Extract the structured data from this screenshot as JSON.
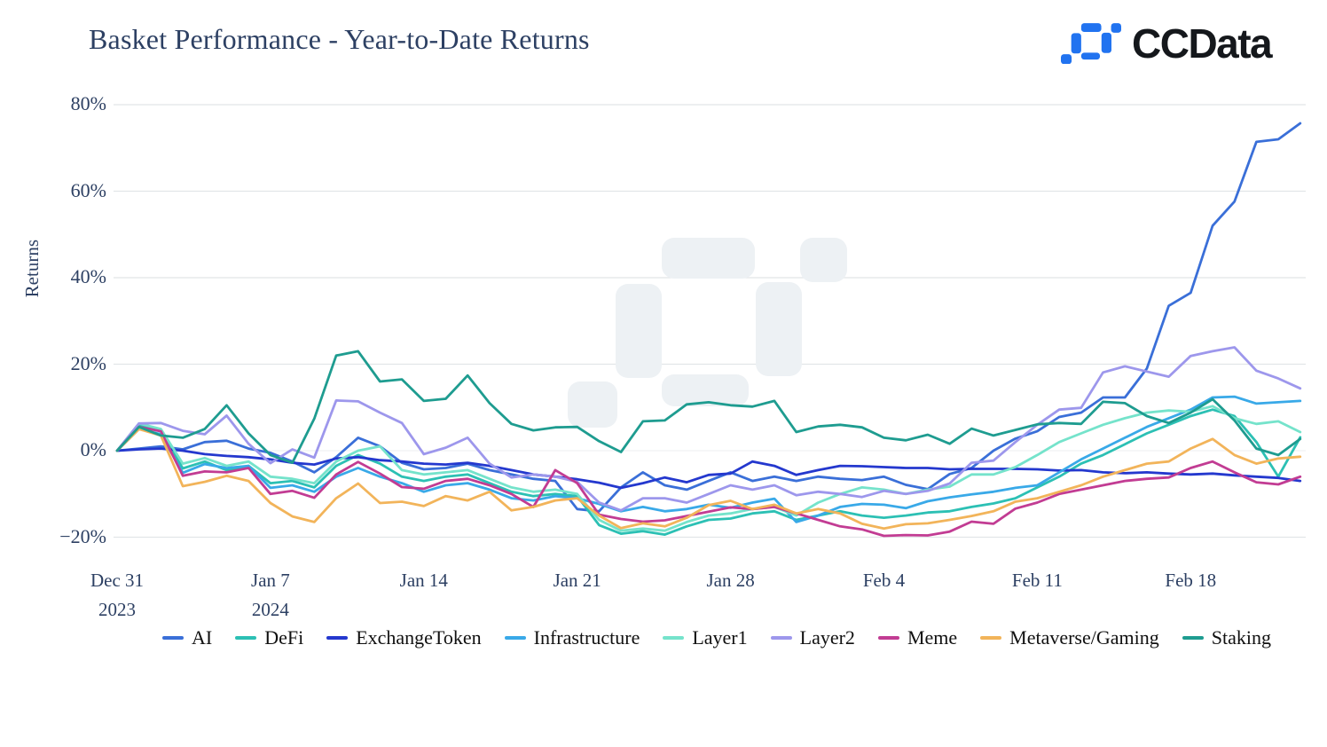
{
  "header": {
    "title": "Basket Performance -  Year-to-Date Returns",
    "logo_text": "CCData"
  },
  "chart_data": {
    "type": "line",
    "title": "Basket Performance -  Year-to-Date Returns",
    "xlabel": "",
    "ylabel": "Returns",
    "ylim": [
      -25,
      85
    ],
    "grid": "horizontal-only",
    "legend_position": "bottom-left",
    "watermark": "ccdata-logo-mark",
    "y_ticks": [
      {
        "label": "80%",
        "value": 80
      },
      {
        "label": "60%",
        "value": 60
      },
      {
        "label": "40%",
        "value": 40
      },
      {
        "label": "20%",
        "value": 20
      },
      {
        "label": "0%",
        "value": 0
      },
      {
        "label": "−20%",
        "value": -20
      }
    ],
    "x_range_days": 54,
    "x_ticks": [
      {
        "label": "Dec 31",
        "sublabel": "2023",
        "day": 0
      },
      {
        "label": "Jan 7",
        "sublabel": "2024",
        "day": 7
      },
      {
        "label": "Jan 14",
        "sublabel": "",
        "day": 14
      },
      {
        "label": "Jan 21",
        "sublabel": "",
        "day": 21
      },
      {
        "label": "Jan 28",
        "sublabel": "",
        "day": 28
      },
      {
        "label": "Feb 4",
        "sublabel": "",
        "day": 35
      },
      {
        "label": "Feb 11",
        "sublabel": "",
        "day": 42
      },
      {
        "label": "Feb 18",
        "sublabel": "",
        "day": 49
      }
    ],
    "series": [
      {
        "name": "AI",
        "color": "#3A6FD8",
        "values": [
          0,
          0.5,
          1,
          0.3,
          2,
          2.3,
          0.5,
          -0.5,
          -2.5,
          -5,
          -1.5,
          3,
          1,
          -2.8,
          -4.3,
          -4,
          -3,
          -4.5,
          -5.5,
          -6.5,
          -7,
          -13.5,
          -14,
          -8.5,
          -5,
          -8,
          -9,
          -7,
          -5,
          -7,
          -6,
          -7,
          -6,
          -6.5,
          -6.8,
          -6,
          -7.9,
          -8.9,
          -5.4,
          -4,
          0,
          2.8,
          4.5,
          7.8,
          8.8,
          12.3,
          12.3,
          19,
          33.5,
          36.5,
          52,
          57.6,
          71.4,
          72,
          75.7
        ]
      },
      {
        "name": "DeFi",
        "color": "#2CC0B4",
        "values": [
          0,
          6,
          4.5,
          -4.1,
          -2.5,
          -4.5,
          -3.5,
          -7.5,
          -7,
          -8.5,
          -3.5,
          -1,
          -3,
          -6,
          -7,
          -6,
          -5.5,
          -7.5,
          -9.5,
          -10.5,
          -10,
          -10.5,
          -17.2,
          -19.2,
          -18.6,
          -19.4,
          -17.5,
          -16,
          -15.7,
          -14.5,
          -14,
          -16,
          -15,
          -14,
          -15,
          -15.5,
          -15,
          -14.3,
          -14,
          -13,
          -12.2,
          -11,
          -8.5,
          -6,
          -3,
          -1,
          1.5,
          4,
          6,
          8,
          9.5,
          8,
          2,
          -6,
          3.1
        ]
      },
      {
        "name": "ExchangeToken",
        "color": "#2438CE",
        "values": [
          0,
          0.3,
          0.5,
          0,
          -0.8,
          -1.2,
          -1.5,
          -2,
          -2.8,
          -3.2,
          -1.8,
          -1.5,
          -2.2,
          -2.5,
          -3,
          -3.2,
          -2.8,
          -3.5,
          -4.5,
          -5.5,
          -6,
          -6.6,
          -7.4,
          -8.6,
          -7.5,
          -6.2,
          -7.3,
          -5.6,
          -5.3,
          -2.5,
          -3.5,
          -5.6,
          -4.5,
          -3.5,
          -3.6,
          -3.8,
          -4,
          -4,
          -4.3,
          -4.2,
          -4.2,
          -4.2,
          -4.3,
          -4.6,
          -4.5,
          -5,
          -5.2,
          -5,
          -5.3,
          -5.5,
          -5.3,
          -5.7,
          -6,
          -6.3,
          -7
        ]
      },
      {
        "name": "Infrastructure",
        "color": "#39A9E8",
        "values": [
          0,
          5,
          3.8,
          -5.1,
          -3.1,
          -4,
          -3.5,
          -8.6,
          -8,
          -9.5,
          -6,
          -4,
          -6,
          -7.5,
          -9.5,
          -8,
          -7.5,
          -9,
          -11,
          -11.5,
          -10.5,
          -11,
          -12.3,
          -14,
          -13,
          -14,
          -13.5,
          -12.5,
          -13.2,
          -12,
          -11.1,
          -16.5,
          -15,
          -13,
          -12.3,
          -12.5,
          -13.3,
          -11.7,
          -10.8,
          -10.1,
          -9.5,
          -8.6,
          -8,
          -5,
          -2,
          0.5,
          3,
          5.5,
          7.5,
          9.5,
          12.3,
          12.5,
          10.9,
          11.2,
          11.5
        ]
      },
      {
        "name": "Layer1",
        "color": "#75E3CB",
        "values": [
          0,
          6.3,
          5,
          -3,
          -1.7,
          -3.5,
          -2.5,
          -6,
          -6.5,
          -7.5,
          -2.5,
          0,
          1,
          -4.5,
          -5.5,
          -5,
          -4.5,
          -6.5,
          -8.5,
          -9.5,
          -9,
          -10,
          -16,
          -18.5,
          -18,
          -18.5,
          -16.5,
          -15,
          -14.5,
          -13.5,
          -13,
          -15,
          -12,
          -10,
          -8.5,
          -9,
          -10,
          -9,
          -8.3,
          -5.5,
          -5.5,
          -3.8,
          -1,
          2,
          4,
          6,
          7.5,
          8.8,
          9.3,
          9,
          10.3,
          7.5,
          6.2,
          6.8,
          4.3
        ]
      },
      {
        "name": "Layer2",
        "color": "#9D97EC",
        "values": [
          0,
          6.3,
          6.4,
          4.6,
          3.8,
          8.1,
          1.6,
          -2.9,
          0.3,
          -1.6,
          11.6,
          11.4,
          8.8,
          6.4,
          -0.8,
          0.7,
          3,
          -3,
          -6.2,
          -5.5,
          -6,
          -7.2,
          -12,
          -13.8,
          -11,
          -11,
          -12,
          -10,
          -8,
          -9,
          -8,
          -10.3,
          -9.5,
          -10,
          -10.7,
          -9.3,
          -10,
          -9.3,
          -7.6,
          -2.8,
          -2.3,
          2,
          6,
          9.5,
          9.9,
          18.1,
          19.5,
          18.3,
          17.1,
          21.9,
          23,
          23.9,
          18.5,
          16.7,
          14.4
        ]
      },
      {
        "name": "Meme",
        "color": "#C23C93",
        "values": [
          0,
          5.5,
          4.5,
          -5.8,
          -4.8,
          -5,
          -4,
          -10,
          -9.3,
          -10.9,
          -5.5,
          -2.6,
          -5.3,
          -8.4,
          -8.8,
          -7,
          -6.5,
          -8,
          -10,
          -13,
          -4.5,
          -7.5,
          -14.8,
          -15.8,
          -16.4,
          -16.1,
          -15.1,
          -14.1,
          -13.1,
          -13.5,
          -13,
          -14.5,
          -16,
          -17.5,
          -18.2,
          -19.7,
          -19.5,
          -19.6,
          -18.7,
          -16.4,
          -16.9,
          -13.4,
          -12,
          -10,
          -9,
          -8,
          -7,
          -6.5,
          -6.2,
          -4,
          -2.5,
          -5,
          -7.3,
          -7.8,
          -6
        ]
      },
      {
        "name": "Metaverse/Gaming",
        "color": "#F2B45A",
        "values": [
          0,
          5,
          3.5,
          -8.2,
          -7.2,
          -5.8,
          -7,
          -12.1,
          -15.2,
          -16.5,
          -11,
          -7.6,
          -12.1,
          -11.8,
          -12.8,
          -10.5,
          -11.5,
          -9.5,
          -13.8,
          -13,
          -11.5,
          -11,
          -15,
          -17.9,
          -16.8,
          -17.5,
          -15.5,
          -12.6,
          -11.6,
          -13.5,
          -12.5,
          -14.5,
          -13.5,
          -14.5,
          -16.9,
          -18,
          -17,
          -16.8,
          -16,
          -15.1,
          -14,
          -11.8,
          -11,
          -9.5,
          -8,
          -6,
          -4.5,
          -3,
          -2.5,
          0.5,
          2.7,
          -1,
          -3,
          -1.8,
          -1.4
        ]
      },
      {
        "name": "Staking",
        "color": "#1E9C90",
        "values": [
          0,
          5.5,
          3.5,
          3,
          5,
          10.5,
          4,
          -1,
          -2.8,
          7.4,
          22,
          23,
          16,
          16.5,
          11.5,
          12,
          17.4,
          11,
          6.2,
          4.7,
          5.4,
          5.5,
          2.2,
          -0.3,
          6.8,
          7,
          10.7,
          11.2,
          10.5,
          10.2,
          11.5,
          4.3,
          5.6,
          6,
          5.4,
          3,
          2.4,
          3.7,
          1.6,
          5.1,
          3.5,
          4.8,
          6.1,
          6.4,
          6.2,
          11.3,
          11,
          8,
          6.4,
          8.8,
          11.9,
          7,
          0.5,
          -1,
          2.7
        ]
      }
    ]
  }
}
